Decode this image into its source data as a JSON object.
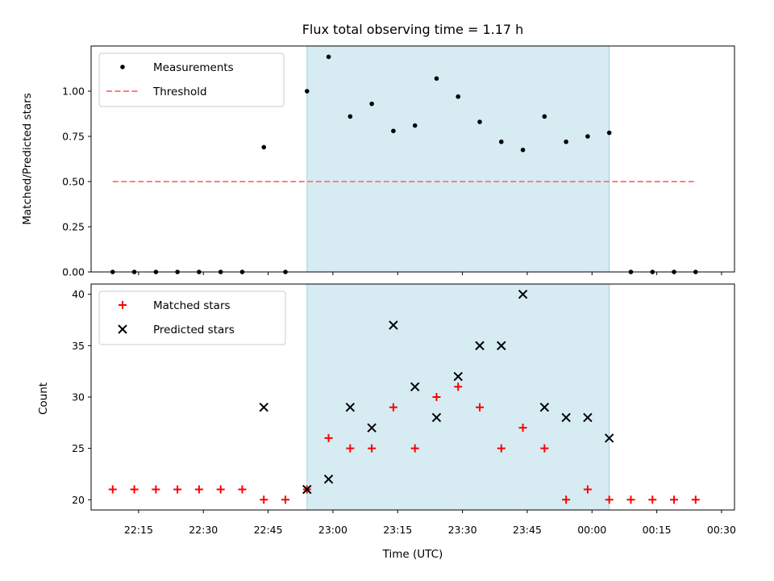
{
  "title": "Flux total observing time = 1.17 h",
  "chart_data": [
    {
      "type": "scatter",
      "panel": "top",
      "ylabel": "Matched/Predicted stars",
      "ylim": [
        0,
        1.25
      ],
      "yticks": [
        0.0,
        0.25,
        0.5,
        0.75,
        1.0
      ],
      "ytick_labels": [
        "0.00",
        "0.25",
        "0.50",
        "0.75",
        "1.00"
      ],
      "grid": false,
      "legend_position": "top-left",
      "shaded_interval": {
        "start": "22:54",
        "end": "00:04",
        "color": "#add8e6"
      },
      "series": [
        {
          "name": "Measurements",
          "marker": "dot",
          "color": "#000000",
          "x": [
            "22:09",
            "22:14",
            "22:19",
            "22:24",
            "22:29",
            "22:34",
            "22:39",
            "22:44",
            "22:49",
            "22:54",
            "22:59",
            "23:04",
            "23:09",
            "23:14",
            "23:19",
            "23:24",
            "23:29",
            "23:34",
            "23:39",
            "23:44",
            "23:49",
            "23:54",
            "23:59",
            "00:04",
            "00:09",
            "00:14",
            "00:19",
            "00:24"
          ],
          "y": [
            0,
            0,
            0,
            0,
            0,
            0,
            0,
            0.69,
            0,
            1.0,
            1.19,
            0.86,
            0.93,
            0.78,
            0.81,
            1.07,
            0.97,
            0.83,
            0.72,
            0.675,
            0.86,
            0.72,
            0.75,
            0.77,
            0,
            0,
            0,
            0
          ]
        },
        {
          "name": "Threshold",
          "style": "dashed",
          "color": "#ff7f7f",
          "x": [
            "22:09",
            "00:24"
          ],
          "y": [
            0.5,
            0.5
          ]
        }
      ]
    },
    {
      "type": "scatter",
      "panel": "bottom",
      "xlabel": "Time (UTC)",
      "ylabel": "Count",
      "ylim": [
        19,
        41
      ],
      "yticks": [
        20,
        25,
        30,
        35,
        40
      ],
      "xticks": [
        "22:15",
        "22:30",
        "22:45",
        "23:00",
        "23:15",
        "23:30",
        "23:45",
        "00:00",
        "00:15",
        "00:30"
      ],
      "grid": false,
      "legend_position": "top-left",
      "shaded_interval": {
        "start": "22:54",
        "end": "00:04",
        "color": "#add8e6"
      },
      "series": [
        {
          "name": "Matched stars",
          "marker": "plus",
          "color": "#ff0000",
          "x": [
            "22:09",
            "22:14",
            "22:19",
            "22:24",
            "22:29",
            "22:34",
            "22:39",
            "22:44",
            "22:49",
            "22:54",
            "22:59",
            "23:04",
            "23:09",
            "23:14",
            "23:19",
            "23:24",
            "23:29",
            "23:34",
            "23:39",
            "23:44",
            "23:49",
            "23:54",
            "23:59",
            "00:04",
            "00:09",
            "00:14",
            "00:19",
            "00:24"
          ],
          "y": [
            21,
            21,
            21,
            21,
            21,
            21,
            21,
            20,
            20,
            21,
            26,
            25,
            25,
            29,
            25,
            30,
            31,
            29,
            25,
            27,
            25,
            20,
            21,
            20,
            20,
            20,
            20,
            20
          ]
        },
        {
          "name": "Predicted stars",
          "marker": "x",
          "color": "#000000",
          "x": [
            "22:44",
            "22:54",
            "22:59",
            "23:04",
            "23:09",
            "23:14",
            "23:19",
            "23:24",
            "23:29",
            "23:34",
            "23:39",
            "23:44",
            "23:49",
            "23:54",
            "23:59",
            "00:04"
          ],
          "y": [
            29,
            21,
            22,
            29,
            27,
            37,
            31,
            28,
            32,
            35,
            35,
            40,
            29,
            28,
            28,
            26
          ]
        }
      ]
    }
  ]
}
